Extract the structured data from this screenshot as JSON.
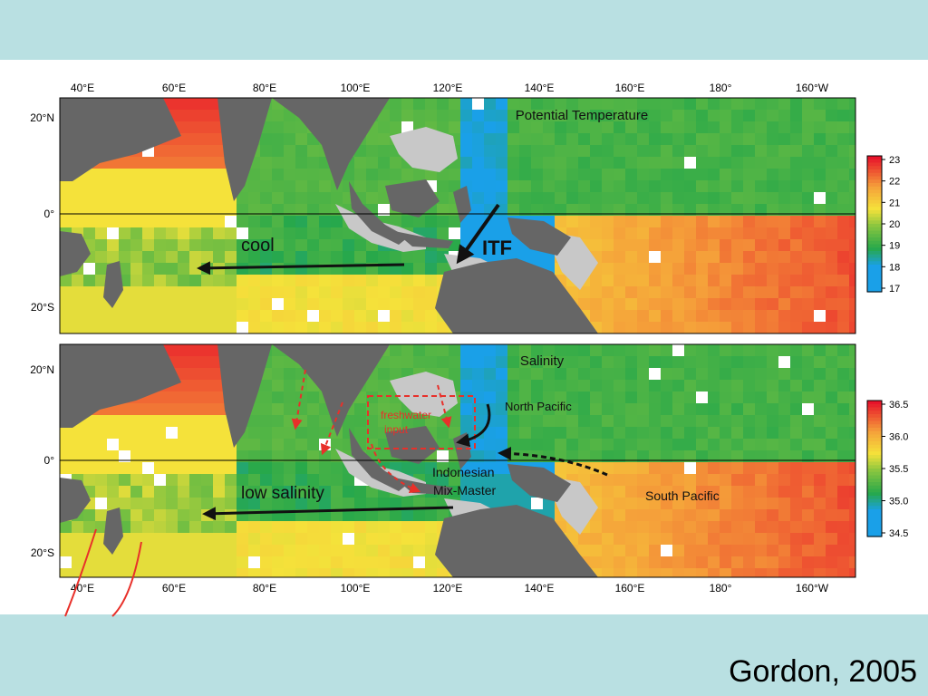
{
  "slide": {
    "citation": "Gordon, 2005",
    "colors": {
      "band": "#b9e0e2",
      "land": "#666666",
      "shelf": "#c8c8c8"
    }
  },
  "axes": {
    "longitude_ticks": [
      "40°E",
      "60°E",
      "80°E",
      "100°E",
      "120°E",
      "140°E",
      "160°E",
      "180°",
      "160°W"
    ],
    "latitude_ticks": [
      "20°N",
      "0°",
      "20°S"
    ]
  },
  "panels": [
    {
      "id": "temperature",
      "title": "Potential Temperature",
      "colorbar": {
        "labels": [
          "23",
          "22",
          "21",
          "20",
          "19",
          "18",
          "17"
        ],
        "min": 17,
        "max": 23
      },
      "annotations": {
        "cool": "cool",
        "itf": "ITF"
      }
    },
    {
      "id": "salinity",
      "title": "Salinity",
      "colorbar": {
        "labels": [
          "36.5",
          "36.0",
          "35.5",
          "35.0",
          "34.5"
        ],
        "min": 34.25,
        "max": 36.6
      },
      "annotations": {
        "north_pacific": "North Pacific",
        "freshwater_1": "freshwater",
        "freshwater_2": "input",
        "mixmaster_1": "Indonesian",
        "mixmaster_2": "Mix-Master",
        "south_pacific": "South Pacific",
        "low_salinity": "low salinity"
      }
    }
  ]
}
